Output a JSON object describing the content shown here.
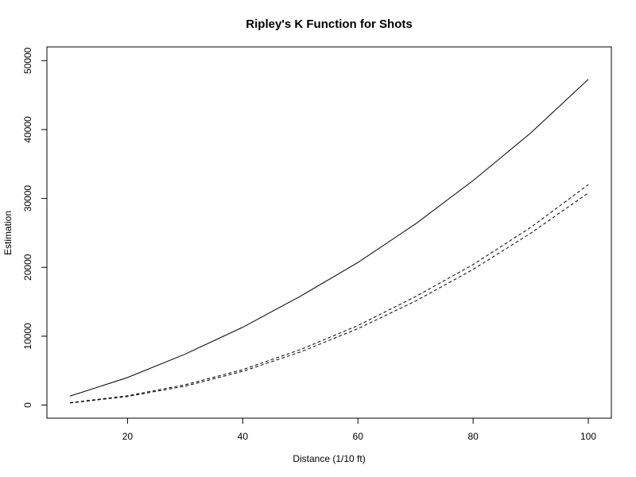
{
  "chart_data": {
    "type": "line",
    "title": "Ripley's K Function for Shots",
    "xlabel": "Distance (1/10 ft)",
    "ylabel": "Estimation",
    "xlim": [
      6,
      104
    ],
    "ylim": [
      -1900,
      52000
    ],
    "xticks": [
      20,
      40,
      60,
      80,
      100
    ],
    "yticks": [
      0,
      10000,
      20000,
      30000,
      40000,
      50000
    ],
    "x": [
      10,
      20,
      30,
      40,
      50,
      60,
      70,
      80,
      90,
      100
    ],
    "grid": false,
    "legend": "none",
    "series": [
      {
        "style": "solid",
        "values": [
          1300,
          4000,
          7400,
          11300,
          15800,
          20700,
          26300,
          32600,
          39500,
          47300
        ]
      },
      {
        "style": "dashed",
        "values": [
          350,
          1350,
          2950,
          5150,
          8050,
          11550,
          15750,
          20400,
          25800,
          32000
        ]
      },
      {
        "style": "dashed",
        "values": [
          300,
          1250,
          2750,
          4900,
          7700,
          11100,
          15100,
          19700,
          24950,
          30800
        ]
      }
    ]
  }
}
